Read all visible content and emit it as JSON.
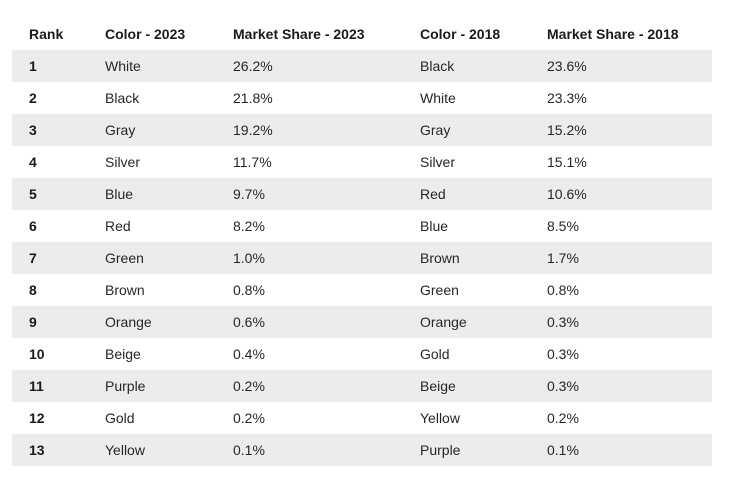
{
  "table": {
    "headers": [
      "Rank",
      "Color - 2023",
      "Market Share - 2023",
      "Color - 2018",
      "Market Share - 2018"
    ],
    "rows": [
      [
        "1",
        "White",
        "26.2%",
        "Black",
        "23.6%"
      ],
      [
        "2",
        "Black",
        "21.8%",
        "White",
        "23.3%"
      ],
      [
        "3",
        "Gray",
        "19.2%",
        "Gray",
        "15.2%"
      ],
      [
        "4",
        "Silver",
        "11.7%",
        "Silver",
        "15.1%"
      ],
      [
        "5",
        "Blue",
        "9.7%",
        "Red",
        "10.6%"
      ],
      [
        "6",
        "Red",
        "8.2%",
        "Blue",
        "8.5%"
      ],
      [
        "7",
        "Green",
        "1.0%",
        "Brown",
        "1.7%"
      ],
      [
        "8",
        "Brown",
        "0.8%",
        "Green",
        "0.8%"
      ],
      [
        "9",
        "Orange",
        "0.6%",
        "Orange",
        "0.3%"
      ],
      [
        "10",
        "Beige",
        "0.4%",
        "Gold",
        "0.3%"
      ],
      [
        "11",
        "Purple",
        "0.2%",
        "Beige",
        "0.3%"
      ],
      [
        "12",
        "Gold",
        "0.2%",
        "Yellow",
        "0.2%"
      ],
      [
        "13",
        "Yellow",
        "0.1%",
        "Purple",
        "0.1%"
      ]
    ]
  }
}
